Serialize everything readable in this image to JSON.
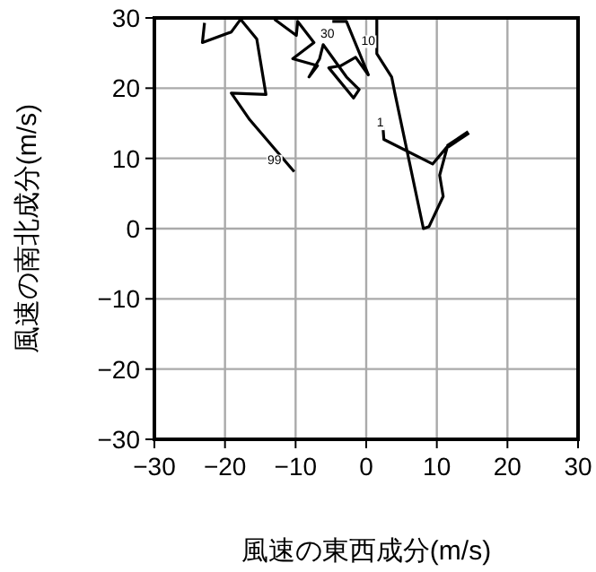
{
  "chart_data": {
    "type": "line",
    "xlabel": "風速の東西成分(m/s)",
    "ylabel": "風速の南北成分(m/s)",
    "xlim": [
      -30,
      30
    ],
    "ylim": [
      -30,
      30
    ],
    "xticks": [
      -30,
      -20,
      -10,
      0,
      10,
      20,
      30
    ],
    "yticks": [
      -30,
      -20,
      -10,
      0,
      10,
      20,
      30
    ],
    "grid": true,
    "series": [
      {
        "color": "#000000",
        "x": [
          -10.2,
          -16.5,
          -19.1,
          -14.2,
          -15.5,
          -17.8,
          -19.1,
          -23.2,
          -22.9,
          null,
          -13.0,
          -9.9,
          -9.7,
          -7.4,
          -10.4,
          -6.9,
          -8.1,
          -6.6,
          -6.1,
          -2.8,
          -1.0,
          -1.8,
          -5.3,
          -3.6,
          -1.5,
          0.3,
          -2.8,
          -4.8,
          null,
          1.5,
          1.5,
          3.6,
          4.1,
          8.1,
          8.9,
          10.9,
          10.4,
          11.5,
          9.4,
          2.5,
          2.3
        ],
        "values": [
          8.1,
          15.5,
          19.3,
          19.1,
          27.0,
          29.8,
          28.0,
          26.5,
          29.3,
          null,
          29.8,
          27.5,
          29.5,
          26.5,
          24.2,
          23.2,
          21.6,
          24.2,
          26.2,
          21.6,
          19.8,
          18.6,
          22.9,
          23.2,
          24.4,
          21.9,
          29.5,
          29.5,
          null,
          30,
          24.9,
          21.6,
          19.1,
          0,
          0.3,
          4.6,
          7.6,
          11.7,
          9.2,
          12.7,
          15.5
        ]
      },
      {
        "color": "#000000",
        "x": [
          11.5,
          14.5
        ],
        "values": [
          11.7,
          13.7
        ]
      }
    ],
    "annotations": [
      {
        "text": "99",
        "x": -13,
        "y": 10
      },
      {
        "text": "30",
        "x": -5.5,
        "y": 28
      },
      {
        "text": "10",
        "x": 0.3,
        "y": 27
      },
      {
        "text": "1",
        "x": 2,
        "y": 15.3
      }
    ]
  }
}
